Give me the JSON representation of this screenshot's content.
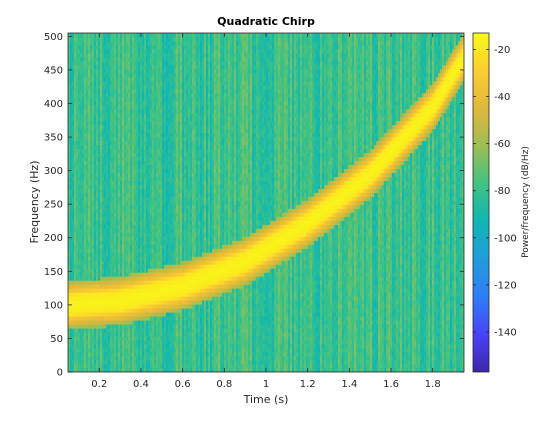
{
  "chart_data": {
    "type": "heatmap",
    "title": "Quadratic Chirp",
    "xlabel": "Time (s)",
    "ylabel": "Frequency (Hz)",
    "xlim": [
      0.05,
      1.95
    ],
    "ylim": [
      0,
      505
    ],
    "x_ticks": [
      0.2,
      0.4,
      0.6,
      0.8,
      1,
      1.2,
      1.4,
      1.6,
      1.8
    ],
    "x_tick_labels": [
      "0.2",
      "0.4",
      "0.6",
      "0.8",
      "1",
      "1.2",
      "1.4",
      "1.6",
      "1.8"
    ],
    "y_ticks": [
      0,
      50,
      100,
      150,
      200,
      250,
      300,
      350,
      400,
      450,
      500
    ],
    "y_tick_labels": [
      "0",
      "50",
      "100",
      "150",
      "200",
      "250",
      "300",
      "350",
      "400",
      "450",
      "500"
    ],
    "colorbar": {
      "label": "Power/frequency (dB/Hz)",
      "range": [
        -157,
        -13
      ],
      "ticks": [
        -20,
        -40,
        -60,
        -80,
        -100,
        -120,
        -140
      ],
      "tick_labels": [
        "-20",
        "-40",
        "-60",
        "-80",
        "-100",
        "-120",
        "-140"
      ],
      "colormap": [
        "#3e26a8",
        "#4743f9",
        "#2d7ef8",
        "#1f9ddc",
        "#0eb7b4",
        "#40c382",
        "#9cbe54",
        "#e0b83a",
        "#fcce2f",
        "#f9fb15"
      ]
    },
    "instantaneous_frequency": {
      "description_points_t": [
        0.05,
        0.3,
        0.6,
        0.9,
        1.2,
        1.5,
        1.8,
        1.95
      ],
      "description_points_f": [
        100,
        106,
        128,
        165,
        222,
        295,
        395,
        470
      ],
      "peak_db": -15,
      "background_db": [
        -90,
        -70
      ]
    }
  }
}
